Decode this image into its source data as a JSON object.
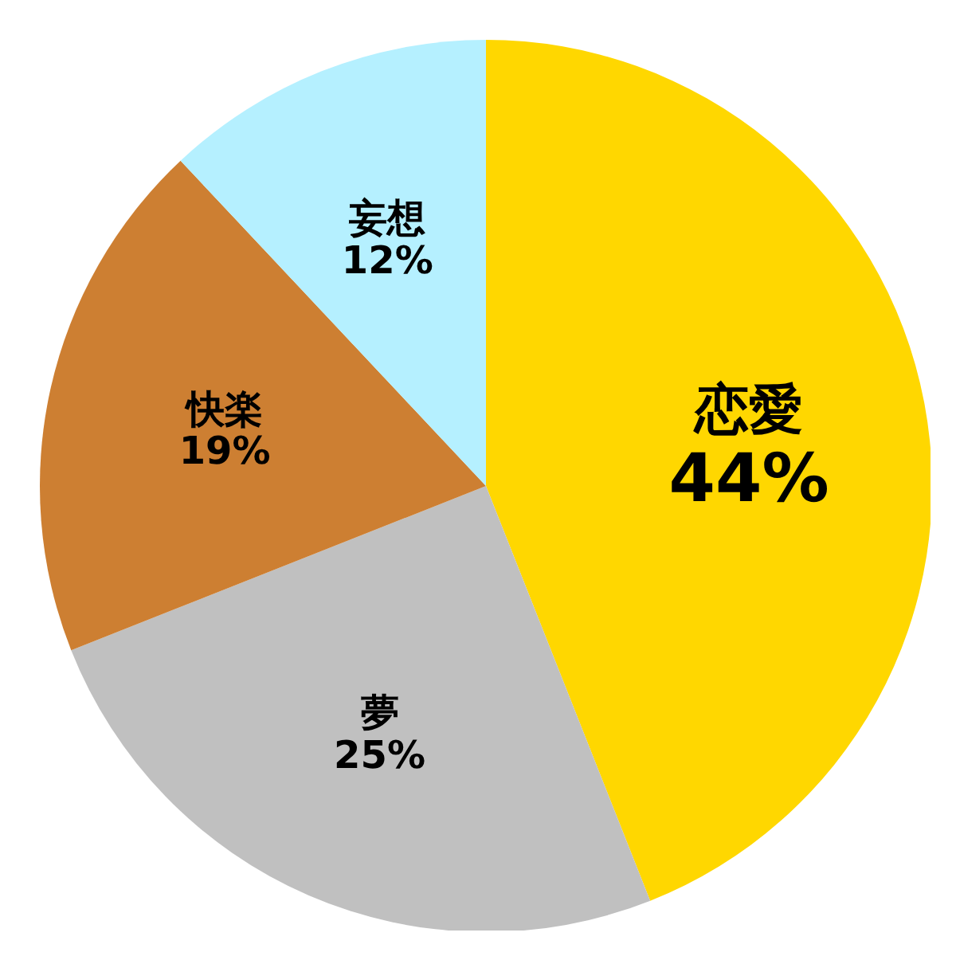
{
  "chart_data": {
    "type": "pie",
    "categories": [
      "恋愛",
      "夢",
      "快楽",
      "妄想"
    ],
    "values": [
      44,
      25,
      19,
      12
    ],
    "colors": [
      "#ffd700",
      "#c0c0c0",
      "#cd7f32",
      "#b5f0ff"
    ],
    "value_labels": [
      "44%",
      "25%",
      "19%",
      "12%"
    ]
  }
}
